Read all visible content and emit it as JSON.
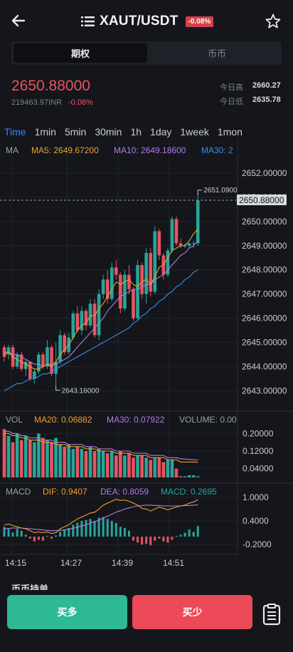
{
  "header": {
    "title": "XAUT/USDT",
    "change_badge": "-0.08%"
  },
  "segment": {
    "options": [
      "期权",
      "币币"
    ],
    "active": "期权"
  },
  "price": {
    "last": "2650.88000",
    "inr": "219463.97INR",
    "change_pct": "-0.08%"
  },
  "stats": {
    "high_label": "今日高",
    "high_value": "2660.27",
    "low_label": "今日低",
    "low_value": "2635.78"
  },
  "timeframes": [
    "Time",
    "1min",
    "5min",
    "30min",
    "1h",
    "1day",
    "1week",
    "1mon"
  ],
  "active_timeframe": "Time",
  "indicators": {
    "main": {
      "label": "MA",
      "ma5": "MA5: 2649.67200",
      "ma10": "MA10: 2649.18600",
      "ma30": "MA30: 2"
    },
    "vol": {
      "label": "VOL",
      "ma20": "MA20: 0.06882",
      "ma30": "MA30: 0.07922",
      "volume": "VOLUME: 0.00"
    },
    "macd": {
      "label": "MACD",
      "dif": "DIF: 0.9407",
      "dea": "DEA: 0.8059",
      "macd": "MACD: 0.2695"
    }
  },
  "colors": {
    "up": "#26a69a",
    "down": "#e8545f",
    "ma5": "#f0a030",
    "ma10": "#b07ce8",
    "ma30": "#3b8ee8",
    "accent": "#3b82f6"
  },
  "chart_data": [
    {
      "type": "candlestick",
      "y_ticks": [
        "2652.00000",
        "2651.00000",
        "2650.00000",
        "2649.00000",
        "2648.00000",
        "2647.00000",
        "2646.00000",
        "2645.00000",
        "2644.00000",
        "2643.00000"
      ],
      "ylim": [
        2642.6,
        2652.5
      ],
      "x_ticks": [
        "14:15",
        "14:27",
        "14:39",
        "14:51"
      ],
      "current_price_label": "2650.88000",
      "max_label": "2651.0900",
      "min_label": "2643.16000",
      "candles": [
        [
          2644.8,
          2644.9,
          2644.2,
          2644.4
        ],
        [
          2644.5,
          2644.9,
          2644.3,
          2644.8
        ],
        [
          2644.8,
          2644.9,
          2643.9,
          2644.0
        ],
        [
          2644.0,
          2644.6,
          2643.9,
          2644.5
        ],
        [
          2644.5,
          2644.6,
          2643.8,
          2643.9
        ],
        [
          2643.9,
          2644.3,
          2643.6,
          2644.2
        ],
        [
          2644.2,
          2644.2,
          2643.4,
          2643.5
        ],
        [
          2643.5,
          2643.9,
          2643.3,
          2643.8
        ],
        [
          2643.8,
          2644.6,
          2643.7,
          2644.5
        ],
        [
          2644.5,
          2644.6,
          2643.9,
          2644.0
        ],
        [
          2644.0,
          2645.1,
          2643.9,
          2644.8
        ],
        [
          2644.8,
          2644.9,
          2643.6,
          2643.7
        ],
        [
          2643.7,
          2645.0,
          2643.2,
          2644.2
        ],
        [
          2644.2,
          2645.5,
          2644.1,
          2645.3
        ],
        [
          2645.3,
          2645.4,
          2644.5,
          2644.6
        ],
        [
          2644.6,
          2645.4,
          2644.5,
          2645.2
        ],
        [
          2645.2,
          2646.3,
          2645.1,
          2646.2
        ],
        [
          2646.2,
          2646.5,
          2645.4,
          2645.5
        ],
        [
          2645.5,
          2646.5,
          2645.3,
          2646.3
        ],
        [
          2646.3,
          2646.4,
          2645.5,
          2645.7
        ],
        [
          2645.7,
          2646.8,
          2645.6,
          2646.6
        ],
        [
          2646.6,
          2646.8,
          2645.2,
          2645.3
        ],
        [
          2645.3,
          2647.2,
          2645.1,
          2647.0
        ],
        [
          2647.0,
          2647.8,
          2646.8,
          2647.6
        ],
        [
          2647.6,
          2648.0,
          2646.6,
          2646.8
        ],
        [
          2646.8,
          2648.3,
          2646.7,
          2648.1
        ],
        [
          2648.1,
          2648.4,
          2647.6,
          2647.8
        ],
        [
          2647.8,
          2647.9,
          2646.2,
          2646.4
        ],
        [
          2646.4,
          2648.0,
          2646.3,
          2647.8
        ],
        [
          2647.8,
          2648.2,
          2647.0,
          2647.2
        ],
        [
          2647.2,
          2647.3,
          2645.9,
          2646.0
        ],
        [
          2646.0,
          2648.4,
          2645.9,
          2648.2
        ],
        [
          2648.2,
          2648.3,
          2646.8,
          2647.0
        ],
        [
          2647.0,
          2648.9,
          2646.6,
          2648.7
        ],
        [
          2648.7,
          2648.9,
          2646.9,
          2647.1
        ],
        [
          2647.1,
          2649.8,
          2647.0,
          2649.6
        ],
        [
          2649.6,
          2649.7,
          2648.4,
          2648.6
        ],
        [
          2648.6,
          2648.7,
          2647.6,
          2647.8
        ],
        [
          2647.8,
          2648.9,
          2647.7,
          2648.8
        ],
        [
          2648.8,
          2650.2,
          2648.7,
          2650.1
        ],
        [
          2650.1,
          2650.2,
          2649.0,
          2649.1
        ],
        [
          2649.1,
          2649.3,
          2648.9,
          2649.0
        ],
        [
          2649.0,
          2649.1,
          2648.9,
          2649.0
        ],
        [
          2649.0,
          2649.1,
          2648.9,
          2649.1
        ],
        [
          2649.1,
          2649.2,
          2648.9,
          2649.1
        ],
        [
          2649.1,
          2651.09,
          2649.0,
          2650.88
        ]
      ],
      "ma5": [
        2644.5,
        2644.6,
        2644.4,
        2644.3,
        2644.2,
        2644.1,
        2644.0,
        2643.9,
        2643.9,
        2644.0,
        2644.1,
        2644.0,
        2644.2,
        2644.5,
        2644.7,
        2644.9,
        2645.2,
        2645.5,
        2645.7,
        2645.8,
        2646.1,
        2646.1,
        2646.4,
        2646.6,
        2646.9,
        2647.2,
        2647.5,
        2647.4,
        2647.5,
        2647.6,
        2647.4,
        2647.3,
        2647.5,
        2647.6,
        2647.4,
        2647.7,
        2648.1,
        2648.2,
        2648.5,
        2648.8,
        2648.9,
        2649.0,
        2649.0,
        2649.2,
        2649.5,
        2649.67
      ],
      "ma10": [
        2644.6,
        2644.6,
        2644.5,
        2644.5,
        2644.4,
        2644.3,
        2644.2,
        2644.1,
        2644.1,
        2644.0,
        2644.1,
        2644.1,
        2644.1,
        2644.2,
        2644.3,
        2644.4,
        2644.6,
        2644.8,
        2645.0,
        2645.2,
        2645.4,
        2645.6,
        2645.8,
        2646.0,
        2646.3,
        2646.5,
        2646.7,
        2646.9,
        2647.0,
        2647.1,
        2647.2,
        2647.2,
        2647.3,
        2647.4,
        2647.4,
        2647.6,
        2647.7,
        2647.8,
        2648.0,
        2648.2,
        2648.4,
        2648.6,
        2648.7,
        2648.9,
        2649.0,
        2649.19
      ],
      "ma30": [
        2643.0,
        2643.1,
        2643.2,
        2643.3,
        2643.3,
        2643.4,
        2643.5,
        2643.5,
        2643.6,
        2643.7,
        2643.7,
        2643.8,
        2643.9,
        2644.0,
        2644.1,
        2644.2,
        2644.3,
        2644.4,
        2644.5,
        2644.6,
        2644.7,
        2644.8,
        2644.9,
        2645.0,
        2645.1,
        2645.2,
        2645.3,
        2645.4,
        2645.5,
        2645.6,
        2645.8,
        2645.9,
        2646.1,
        2646.2,
        2646.4,
        2646.5,
        2646.7,
        2646.8,
        2647.0,
        2647.1,
        2647.3,
        2647.4,
        2647.6,
        2647.7,
        2647.9,
        2648.0
      ]
    },
    {
      "type": "bar",
      "name": "VOL",
      "y_ticks": [
        "0.20000",
        "0.12000",
        "0.04000"
      ],
      "ylim": [
        0,
        0.24
      ],
      "values": [
        0.22,
        0.19,
        0.16,
        0.2,
        0.17,
        0.19,
        0.17,
        0.16,
        0.2,
        0.18,
        0.17,
        0.16,
        0.18,
        0.15,
        0.14,
        0.15,
        0.13,
        0.14,
        0.13,
        0.12,
        0.14,
        0.12,
        0.13,
        0.12,
        0.11,
        0.12,
        0.1,
        0.12,
        0.1,
        0.11,
        0.09,
        0.1,
        0.1,
        0.09,
        0.08,
        0.09,
        0.09,
        0.07,
        0.08,
        0.08,
        0.04,
        0.005,
        0.005,
        0.01,
        0.01,
        0.005
      ],
      "ma20": [
        0.2,
        0.2,
        0.19,
        0.19,
        0.18,
        0.18,
        0.17,
        0.17,
        0.17,
        0.16,
        0.16,
        0.16,
        0.15,
        0.15,
        0.15,
        0.14,
        0.14,
        0.14,
        0.14,
        0.13,
        0.13,
        0.13,
        0.12,
        0.12,
        0.12,
        0.12,
        0.11,
        0.11,
        0.11,
        0.11,
        0.1,
        0.1,
        0.1,
        0.1,
        0.09,
        0.09,
        0.09,
        0.09,
        0.08,
        0.08,
        0.08,
        0.07,
        0.07,
        0.07,
        0.07,
        0.069
      ],
      "ma30": [
        0.21,
        0.21,
        0.2,
        0.2,
        0.19,
        0.19,
        0.18,
        0.18,
        0.18,
        0.17,
        0.17,
        0.17,
        0.16,
        0.16,
        0.16,
        0.15,
        0.15,
        0.15,
        0.15,
        0.14,
        0.14,
        0.14,
        0.13,
        0.13,
        0.13,
        0.13,
        0.12,
        0.12,
        0.12,
        0.12,
        0.11,
        0.11,
        0.11,
        0.11,
        0.1,
        0.1,
        0.1,
        0.1,
        0.09,
        0.09,
        0.09,
        0.085,
        0.083,
        0.082,
        0.08,
        0.079
      ]
    },
    {
      "type": "bar",
      "name": "MACD",
      "y_ticks": [
        "1.0000",
        "0.4000",
        "-0.2000"
      ],
      "ylim": [
        -0.45,
        1.25
      ],
      "values": [
        0.25,
        0.2,
        0.1,
        0.2,
        0.15,
        0.05,
        -0.05,
        -0.12,
        -0.08,
        -0.1,
        0.02,
        -0.05,
        0.03,
        0.12,
        0.18,
        0.22,
        0.3,
        0.35,
        0.4,
        0.42,
        0.45,
        0.4,
        0.48,
        0.5,
        0.45,
        0.4,
        0.35,
        0.25,
        0.22,
        0.15,
        -0.1,
        -0.15,
        -0.2,
        -0.18,
        -0.22,
        -0.1,
        -0.05,
        -0.12,
        -0.15,
        -0.08,
        0.02,
        0.05,
        0.1,
        0.18,
        0.12,
        0.27
      ],
      "dif": [
        0.3,
        0.32,
        0.28,
        0.25,
        0.22,
        0.2,
        0.15,
        0.1,
        0.12,
        0.1,
        0.12,
        0.08,
        0.1,
        0.2,
        0.25,
        0.3,
        0.38,
        0.45,
        0.5,
        0.55,
        0.6,
        0.62,
        0.7,
        0.8,
        0.85,
        0.9,
        0.95,
        0.92,
        0.93,
        0.9,
        0.85,
        0.8,
        0.72,
        0.7,
        0.65,
        0.7,
        0.75,
        0.72,
        0.68,
        0.72,
        0.75,
        0.78,
        0.8,
        0.85,
        0.88,
        0.94
      ],
      "dea": [
        0.2,
        0.21,
        0.22,
        0.22,
        0.22,
        0.21,
        0.2,
        0.19,
        0.18,
        0.17,
        0.16,
        0.15,
        0.15,
        0.16,
        0.17,
        0.19,
        0.21,
        0.24,
        0.27,
        0.3,
        0.34,
        0.38,
        0.42,
        0.47,
        0.52,
        0.57,
        0.62,
        0.66,
        0.7,
        0.73,
        0.76,
        0.78,
        0.79,
        0.8,
        0.8,
        0.79,
        0.79,
        0.78,
        0.78,
        0.78,
        0.78,
        0.78,
        0.79,
        0.79,
        0.8,
        0.806
      ]
    }
  ],
  "footer": {
    "partial_heading": "币币持单",
    "buy_label": "买多",
    "sell_label": "买少"
  }
}
